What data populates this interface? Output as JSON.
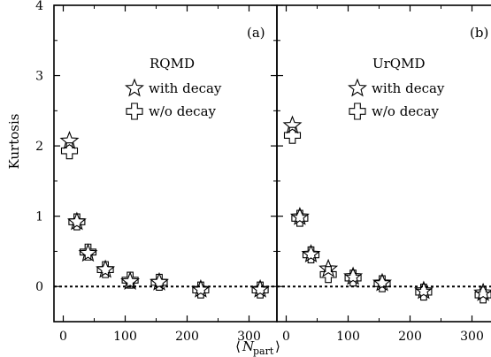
{
  "chart_data": {
    "type": "scatter",
    "ylabel": "Kurtosis",
    "xlabel_main": "N",
    "xlabel_sub": "part",
    "y_ticks": [
      0,
      1,
      2,
      3,
      4
    ],
    "x_ticks": [
      0,
      100,
      200,
      300
    ],
    "x_tick_labels": [
      "0",
      "100",
      "200",
      "300"
    ],
    "y_tick_labels": [
      "0",
      "1",
      "2",
      "3",
      "4"
    ],
    "ylim": [
      -0.5,
      4
    ],
    "xlim": [
      -15,
      345
    ],
    "reference_line_y": 0,
    "panels": [
      {
        "label": "(a)",
        "model": "RQMD",
        "series": [
          {
            "name": "with decay",
            "marker": "star",
            "x": [
              10,
              22,
              40,
              68,
              108,
              155,
              222,
              318
            ],
            "y": [
              2.07,
              0.92,
              0.47,
              0.24,
              0.07,
              0.06,
              -0.04,
              -0.04
            ]
          },
          {
            "name": "w/o decay",
            "marker": "cross",
            "x": [
              10,
              22,
              40,
              68,
              108,
              155,
              222,
              318
            ],
            "y": [
              1.93,
              0.92,
              0.49,
              0.24,
              0.09,
              0.06,
              -0.05,
              -0.05
            ]
          }
        ]
      },
      {
        "label": "(b)",
        "model": "UrQMD",
        "series": [
          {
            "name": "with decay",
            "marker": "star",
            "x": [
              10,
              22,
              40,
              68,
              108,
              155,
              222,
              318
            ],
            "y": [
              2.29,
              0.99,
              0.46,
              0.25,
              0.14,
              0.05,
              -0.06,
              -0.09
            ]
          },
          {
            "name": "w/o decay",
            "marker": "cross",
            "x": [
              10,
              22,
              40,
              68,
              108,
              155,
              222,
              318
            ],
            "y": [
              2.15,
              0.97,
              0.45,
              0.17,
              0.12,
              0.04,
              -0.08,
              -0.12
            ]
          }
        ]
      }
    ]
  }
}
